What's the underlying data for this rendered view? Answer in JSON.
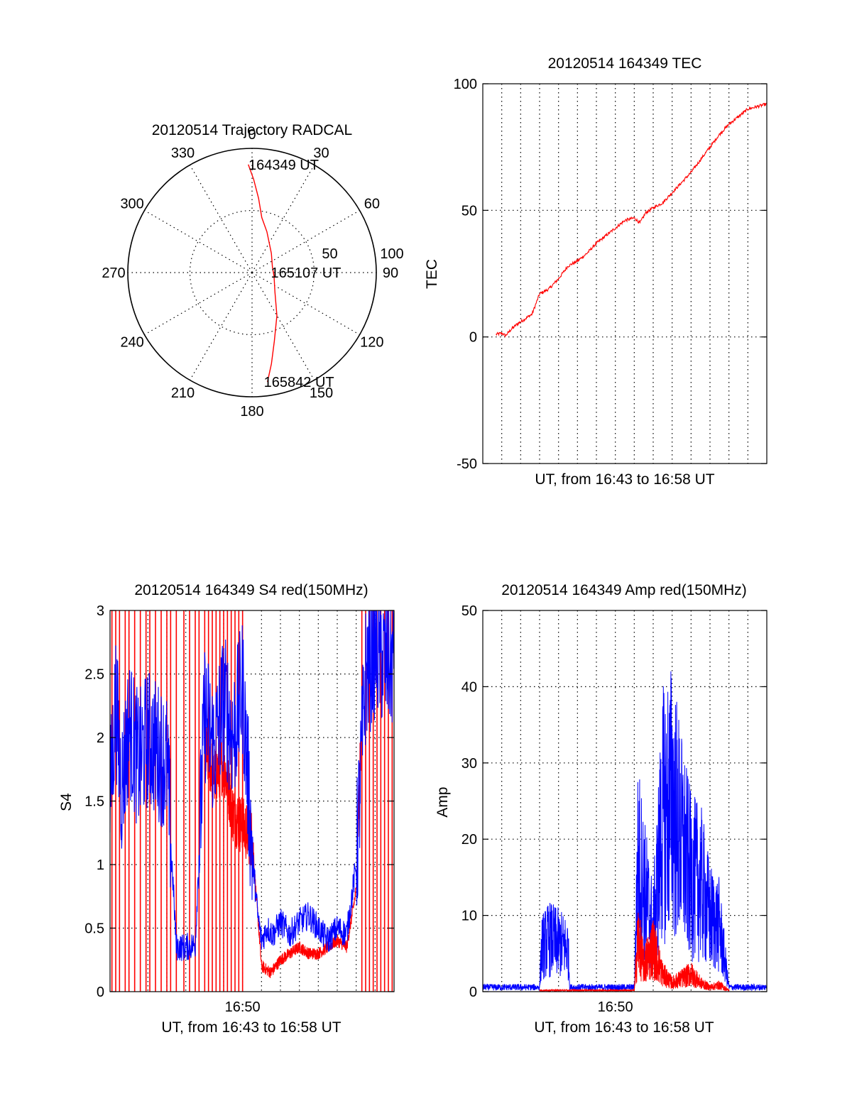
{
  "colors": {
    "red": "#ff0000",
    "blue": "#0000ff",
    "axes": "#000000",
    "background": "#ffffff"
  },
  "chart_data": [
    {
      "type": "polar",
      "title": "20120514 Trajectory RADCAL",
      "angle_labels": [
        "0",
        "30",
        "60",
        "90",
        "120",
        "150",
        "180",
        "210",
        "240",
        "270",
        "300",
        "330"
      ],
      "angle_values": [
        0,
        30,
        60,
        90,
        120,
        150,
        180,
        210,
        240,
        270,
        300,
        330
      ],
      "radial_labels": [
        "50",
        "100"
      ],
      "radial_values": [
        50,
        100
      ],
      "rlim": [
        0,
        100
      ],
      "grid": true,
      "annotations": [
        {
          "text": "164349 UT",
          "azimuth": 360,
          "zenith": 87
        },
        {
          "text": "165107 UT",
          "azimuth": 90,
          "zenith": 18
        },
        {
          "text": "165842 UT",
          "azimuth": 172,
          "zenith": 89
        }
      ],
      "series": [
        {
          "color": "red",
          "azimuth": [
            358,
            1,
            5,
            10,
            20,
            45,
            75,
            100,
            130,
            150,
            162,
            168,
            172
          ],
          "zenith": [
            87,
            75,
            60,
            45,
            35,
            22,
            17,
            18,
            24,
            40,
            58,
            75,
            89
          ]
        }
      ]
    },
    {
      "type": "line",
      "title": "20120514 164349 TEC",
      "xlabel": "UT, from 16:43 to 16:58 UT",
      "ylabel": "TEC",
      "ylim": [
        -50,
        100
      ],
      "yticks": [
        "-50",
        "0",
        "50",
        "100"
      ],
      "ytick_values": [
        -50,
        0,
        50,
        100
      ],
      "xlim_min": [
        0,
        15
      ],
      "xtick_labels": [],
      "grid": true,
      "series": [
        {
          "color": "red",
          "x_min": [
            0.7,
            1.0,
            1.2,
            1.5,
            1.8,
            2.2,
            2.6,
            3.0,
            3.5,
            4.0,
            4.5,
            5.0,
            5.5,
            6.0,
            6.5,
            7.0,
            7.5,
            8.0,
            8.3,
            8.6,
            9.0,
            9.5,
            10.0,
            10.5,
            11.0,
            11.5,
            12.0,
            12.5,
            13.0,
            13.5,
            14.0,
            14.5,
            15.0
          ],
          "y": [
            1,
            1.5,
            0.5,
            3,
            5,
            7,
            9,
            17,
            19,
            23,
            28,
            30,
            33,
            37,
            40,
            43,
            46,
            47,
            45,
            49,
            51,
            53,
            57,
            61,
            65,
            70,
            75,
            80,
            84,
            87,
            90,
            91,
            92
          ]
        }
      ]
    },
    {
      "type": "line",
      "title": "20120514 164349 S4 red(150MHz)",
      "xlabel": "UT, from 16:43 to 16:58 UT",
      "ylabel": "S4",
      "ylim": [
        0,
        3
      ],
      "yticks": [
        "0",
        "0.5",
        "1",
        "1.5",
        "2",
        "2.5",
        "3"
      ],
      "ytick_values": [
        0,
        0.5,
        1,
        1.5,
        2,
        2.5,
        3
      ],
      "xlim_min": [
        0,
        15
      ],
      "xtick_labels": [
        "16:50"
      ],
      "xtick_label_positions_min": [
        7
      ],
      "grid": true,
      "red_spike_times_min": [
        0.1,
        0.3,
        0.5,
        0.8,
        1.0,
        1.3,
        1.6,
        1.9,
        2.1,
        2.4,
        2.7,
        3.0,
        3.2,
        3.5,
        3.9,
        4.2,
        4.5,
        4.7,
        5.0,
        5.2,
        5.4,
        5.6,
        5.8,
        6.0,
        6.2,
        6.4,
        6.6,
        6.8,
        7.0,
        13.3,
        13.5,
        13.7,
        13.9,
        14.1,
        14.3,
        14.5,
        14.7,
        14.9
      ],
      "series": [
        {
          "color": "red",
          "x_min": [
            5.0,
            5.5,
            6.0,
            6.5,
            7.0,
            7.5,
            8.0,
            8.5,
            9.0,
            9.5,
            10.0,
            10.5,
            11.0,
            11.5,
            12.0,
            12.5,
            13.0,
            13.3
          ],
          "y": [
            1.9,
            1.7,
            1.8,
            1.4,
            1.3,
            1.2,
            0.2,
            0.15,
            0.25,
            0.3,
            0.35,
            0.3,
            0.3,
            0.35,
            0.4,
            0.35,
            0.8,
            2.2
          ]
        },
        {
          "color": "blue",
          "x_min": [
            0.0,
            0.3,
            0.6,
            1.0,
            1.5,
            2.0,
            2.5,
            3.0,
            3.5,
            4.0,
            4.5,
            5.0,
            5.5,
            6.0,
            6.5,
            7.0,
            7.5,
            7.8,
            8.0,
            8.3,
            8.6,
            9.0,
            9.5,
            10.0,
            10.5,
            11.0,
            11.5,
            12.0,
            12.5,
            13.0,
            13.5,
            14.0,
            14.5,
            15.0
          ],
          "y": [
            1.5,
            2.3,
            1.6,
            2.1,
            1.8,
            2.0,
            1.9,
            1.8,
            0.35,
            0.35,
            0.37,
            2.2,
            1.9,
            2.3,
            2.0,
            2.4,
            1.1,
            0.6,
            0.4,
            0.5,
            0.45,
            0.55,
            0.45,
            0.55,
            0.6,
            0.5,
            0.4,
            0.5,
            0.45,
            1.0,
            2.5,
            2.7,
            2.6,
            2.6
          ]
        }
      ]
    },
    {
      "type": "line",
      "title": "20120514 164349 Amp red(150MHz)",
      "xlabel": "UT, from 16:43 to 16:58 UT",
      "ylabel": "Amp",
      "ylim": [
        0,
        50
      ],
      "yticks": [
        "0",
        "10",
        "20",
        "30",
        "40",
        "50"
      ],
      "ytick_values": [
        0,
        10,
        20,
        30,
        40,
        50
      ],
      "xlim_min": [
        0,
        15
      ],
      "xtick_labels": [
        "16:50"
      ],
      "xtick_label_positions_min": [
        7
      ],
      "grid": true,
      "series": [
        {
          "color": "blue",
          "x_min": [
            0.0,
            1.0,
            2.0,
            3.0,
            3.1,
            3.5,
            4.0,
            4.5,
            4.6,
            5.5,
            6.5,
            7.5,
            8.0,
            8.2,
            8.5,
            9.0,
            9.5,
            10.0,
            10.5,
            11.0,
            11.5,
            12.0,
            12.5,
            13.0,
            13.5,
            14.0,
            15.0
          ],
          "y": [
            1,
            1,
            1,
            1,
            10,
            12,
            11,
            10,
            1,
            1,
            1,
            1,
            1,
            31,
            24,
            14,
            40,
            44,
            34,
            26,
            25,
            17,
            15,
            1,
            1,
            1,
            1
          ]
        },
        {
          "color": "red",
          "x_min": [
            3.0,
            4.5,
            8.0,
            8.2,
            8.5,
            9.0,
            9.5,
            10.0,
            10.5,
            11.0,
            11.5,
            12.0,
            12.5,
            13.0
          ],
          "y": [
            0.3,
            0.3,
            0.3,
            12,
            6,
            10,
            4,
            2,
            3,
            4,
            2,
            1,
            1.5,
            0.3
          ]
        }
      ]
    }
  ]
}
